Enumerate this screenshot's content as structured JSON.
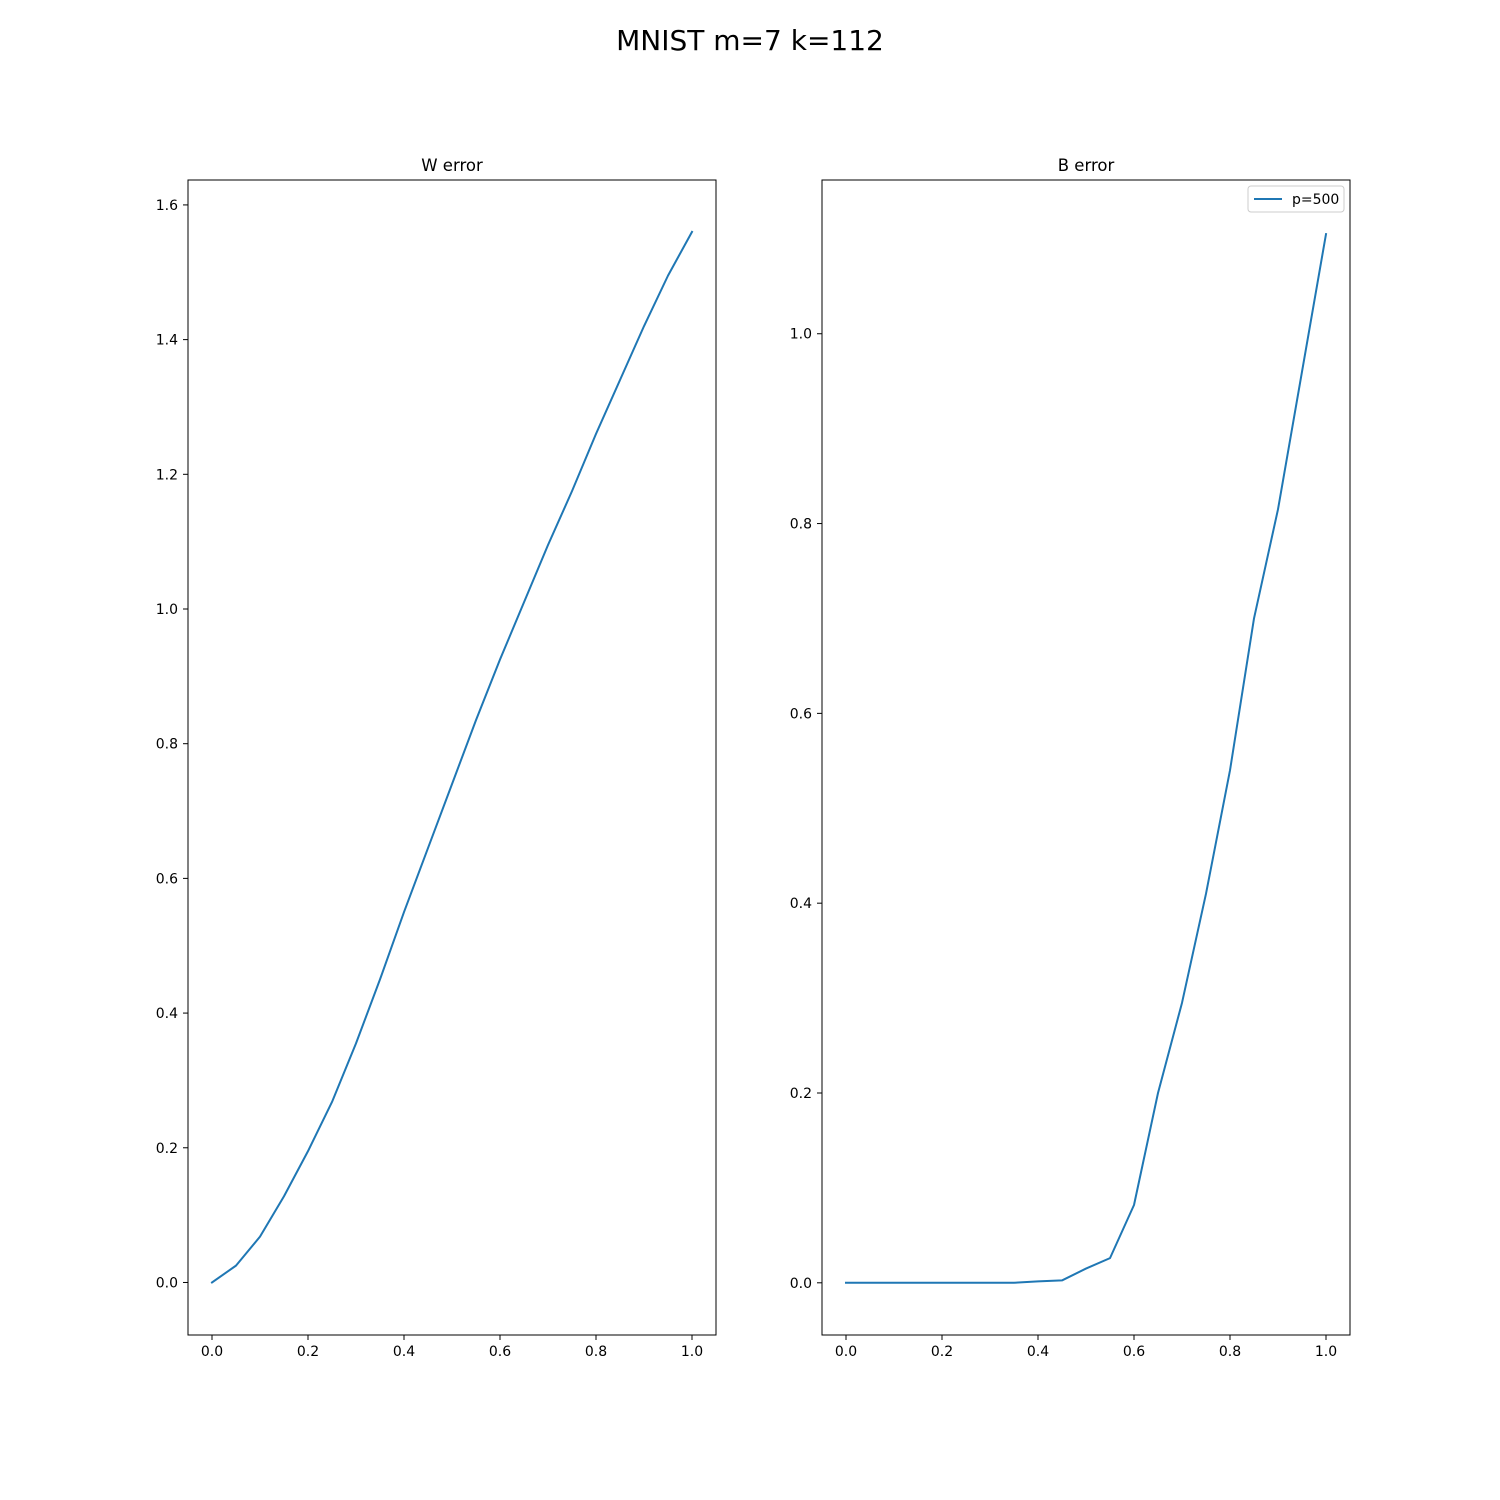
{
  "figure": {
    "suptitle": "MNIST m=7 k=112"
  },
  "chart_data": [
    {
      "type": "line",
      "title": "W error",
      "xlabel": "",
      "ylabel": "",
      "xlim": [
        -0.05,
        1.05
      ],
      "ylim": [
        -0.078,
        1.637
      ],
      "xticks": [
        0.0,
        0.2,
        0.4,
        0.6,
        0.8,
        1.0
      ],
      "xtick_labels": [
        "0.0",
        "0.2",
        "0.4",
        "0.6",
        "0.8",
        "1.0"
      ],
      "yticks": [
        0.0,
        0.2,
        0.4,
        0.6,
        0.8,
        1.0,
        1.2,
        1.4,
        1.6
      ],
      "ytick_labels": [
        "0.0",
        "0.2",
        "0.4",
        "0.6",
        "0.8",
        "1.0",
        "1.2",
        "1.4",
        "1.6"
      ],
      "grid": false,
      "legend": null,
      "series": [
        {
          "name": "",
          "color": "#1f77b4",
          "x": [
            0.0,
            0.05,
            0.1,
            0.15,
            0.2,
            0.25,
            0.3,
            0.35,
            0.4,
            0.45,
            0.5,
            0.55,
            0.6,
            0.65,
            0.7,
            0.75,
            0.8,
            0.85,
            0.9,
            0.95,
            1.0
          ],
          "y": [
            0.0,
            0.025,
            0.068,
            0.128,
            0.195,
            0.268,
            0.355,
            0.45,
            0.55,
            0.645,
            0.74,
            0.835,
            0.925,
            1.01,
            1.095,
            1.175,
            1.26,
            1.34,
            1.42,
            1.495,
            1.56
          ]
        }
      ]
    },
    {
      "type": "line",
      "title": "B error",
      "xlabel": "",
      "ylabel": "",
      "xlim": [
        -0.05,
        1.05
      ],
      "ylim": [
        -0.055,
        1.162
      ],
      "xticks": [
        0.0,
        0.2,
        0.4,
        0.6,
        0.8,
        1.0
      ],
      "xtick_labels": [
        "0.0",
        "0.2",
        "0.4",
        "0.6",
        "0.8",
        "1.0"
      ],
      "yticks": [
        0.0,
        0.2,
        0.4,
        0.6,
        0.8,
        1.0
      ],
      "ytick_labels": [
        "0.0",
        "0.2",
        "0.4",
        "0.6",
        "0.8",
        "1.0"
      ],
      "grid": false,
      "legend": "top-right",
      "series": [
        {
          "name": "p=500",
          "color": "#1f77b4",
          "x": [
            0.0,
            0.05,
            0.1,
            0.15,
            0.2,
            0.25,
            0.3,
            0.35,
            0.4,
            0.45,
            0.5,
            0.55,
            0.6,
            0.65,
            0.7,
            0.75,
            0.8,
            0.85,
            0.9,
            0.95,
            1.0
          ],
          "y": [
            0.0,
            0.0,
            0.0,
            0.0,
            0.0,
            0.0,
            0.0,
            0.0,
            0.0015,
            0.0025,
            0.015,
            0.026,
            0.082,
            0.2,
            0.295,
            0.41,
            0.54,
            0.7,
            0.815,
            0.96,
            1.105
          ]
        }
      ]
    }
  ]
}
